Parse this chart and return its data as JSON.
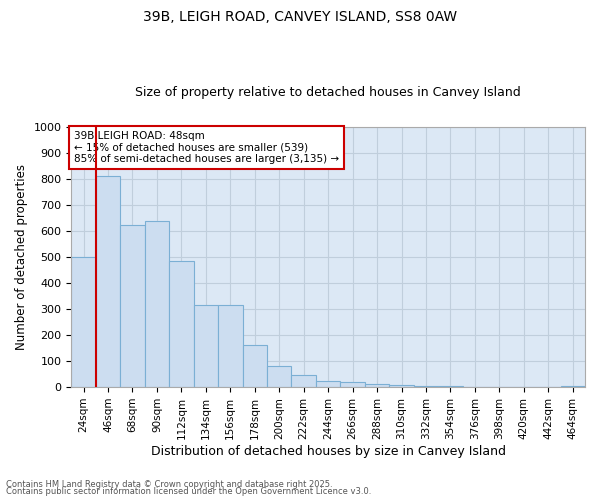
{
  "title": "39B, LEIGH ROAD, CANVEY ISLAND, SS8 0AW",
  "subtitle": "Size of property relative to detached houses in Canvey Island",
  "xlabel": "Distribution of detached houses by size in Canvey Island",
  "ylabel": "Number of detached properties",
  "categories": [
    "24sqm",
    "46sqm",
    "68sqm",
    "90sqm",
    "112sqm",
    "134sqm",
    "156sqm",
    "178sqm",
    "200sqm",
    "222sqm",
    "244sqm",
    "266sqm",
    "288sqm",
    "310sqm",
    "332sqm",
    "354sqm",
    "376sqm",
    "398sqm",
    "420sqm",
    "442sqm",
    "464sqm"
  ],
  "values": [
    500,
    810,
    625,
    640,
    485,
    315,
    315,
    160,
    80,
    45,
    22,
    20,
    12,
    7,
    4,
    4,
    2,
    1,
    1,
    1,
    5
  ],
  "bar_color": "#ccddf0",
  "bar_edge_color": "#7bafd4",
  "grid_color": "#c0cedc",
  "plot_bg_color": "#dce8f5",
  "fig_bg_color": "#ffffff",
  "vline_x": 1,
  "vline_color": "#cc0000",
  "ylim": [
    0,
    1000
  ],
  "yticks": [
    0,
    100,
    200,
    300,
    400,
    500,
    600,
    700,
    800,
    900,
    1000
  ],
  "annotation_text": "39B LEIGH ROAD: 48sqm\n← 15% of detached houses are smaller (539)\n85% of semi-detached houses are larger (3,135) →",
  "annotation_box_color": "#ffffff",
  "annotation_box_edge": "#cc0000",
  "footnote1": "Contains HM Land Registry data © Crown copyright and database right 2025.",
  "footnote2": "Contains public sector information licensed under the Open Government Licence v3.0."
}
